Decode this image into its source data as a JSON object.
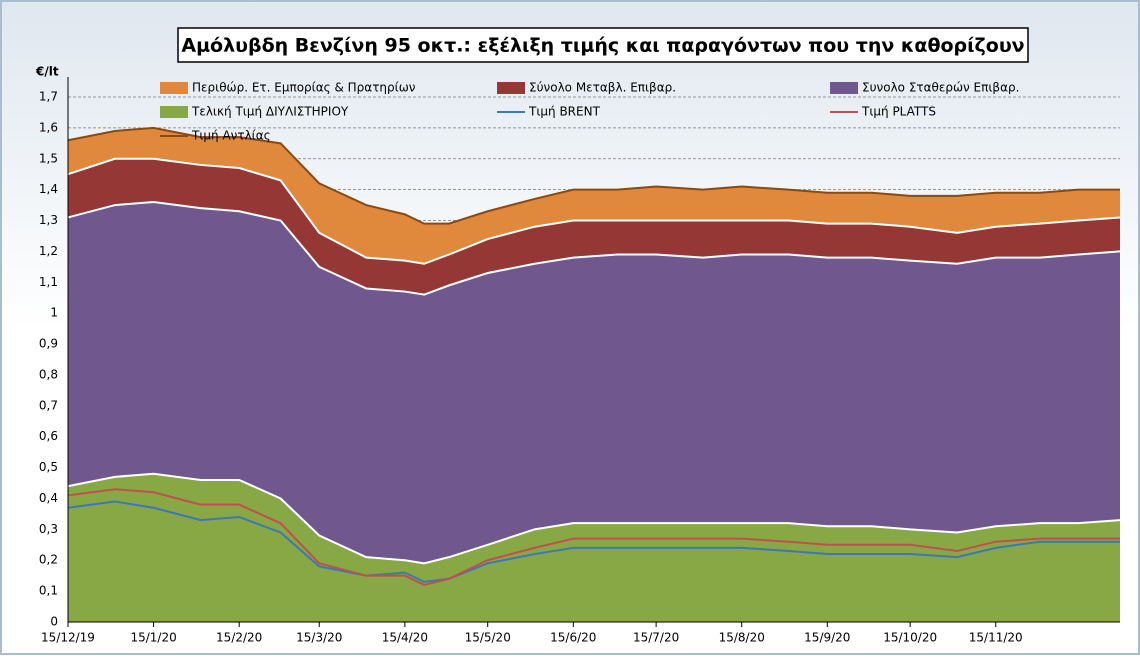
{
  "chart_data": {
    "type": "stacked-area",
    "title": "Αμόλυβδη Βενζίνη 95 οκτ.: εξέλιξη τιμής και παραγόντων που την καθορίζουν",
    "y_label": "€/lt",
    "x": [
      "15/12/19",
      "1/1/20",
      "15/1/20",
      "1/2/20",
      "15/2/20",
      "1/3/20",
      "15/3/20",
      "1/4/20",
      "15/4/20",
      "22/4/20",
      "1/5/20",
      "15/5/20",
      "1/6/20",
      "15/6/20",
      "1/7/20",
      "15/7/20",
      "1/8/20",
      "15/8/20",
      "1/9/20",
      "15/9/20",
      "1/10/20",
      "15/10/20",
      "1/11/20",
      "15/11/20",
      "1/12/20",
      "15/12/20",
      "30/12/20"
    ],
    "xlim": [
      "15/12/19",
      "30/12/20"
    ],
    "xticks": [
      "15/12/19",
      "15/1/20",
      "15/2/20",
      "15/3/20",
      "15/4/20",
      "15/5/20",
      "15/6/20",
      "15/7/20",
      "15/8/20",
      "15/9/20",
      "15/10/20",
      "15/11/20"
    ],
    "ylim": [
      0,
      1.7
    ],
    "yticks": [
      0,
      {
        "value": 0.1,
        "label": "0,1"
      },
      {
        "value": 0.2,
        "label": "0,2"
      },
      {
        "value": 0.3,
        "label": "0,3"
      },
      {
        "value": 0.4,
        "label": "0,4"
      },
      {
        "value": 0.5,
        "label": "0,5"
      },
      {
        "value": 0.6,
        "label": "0,6"
      },
      {
        "value": 0.7,
        "label": "0,7"
      },
      {
        "value": 0.8,
        "label": "0,8"
      },
      {
        "value": 0.9,
        "label": "0,9"
      },
      1,
      {
        "value": 1.1,
        "label": "1,1"
      },
      {
        "value": 1.2,
        "label": "1,2"
      },
      {
        "value": 1.3,
        "label": "1,3"
      },
      {
        "value": 1.4,
        "label": "1,4"
      },
      {
        "value": 1.5,
        "label": "1,5"
      },
      {
        "value": 1.6,
        "label": "1,6"
      },
      {
        "value": 1.7,
        "label": "1,7"
      }
    ],
    "grid": true,
    "series": [
      {
        "name": "Περιθώρ. Ετ. Εμπορίας & Πρατηρίων",
        "color": "#e0893d",
        "kind": "area",
        "stack": 3,
        "legend": [
          0,
          0
        ],
        "values": [
          0.11,
          0.09,
          0.1,
          0.09,
          0.1,
          0.12,
          0.16,
          0.17,
          0.15,
          0.13,
          0.1,
          0.09,
          0.09,
          0.1,
          0.1,
          0.11,
          0.1,
          0.11,
          0.1,
          0.1,
          0.1,
          0.1,
          0.12,
          0.11,
          0.1,
          0.1,
          0.09
        ]
      },
      {
        "name": "Σύνολο Μεταβλ. Επιβαρ.",
        "color": "#953735",
        "kind": "area",
        "stack": 2,
        "legend": [
          1,
          0
        ],
        "values": [
          0.14,
          0.15,
          0.14,
          0.14,
          0.14,
          0.13,
          0.11,
          0.1,
          0.1,
          0.1,
          0.1,
          0.11,
          0.12,
          0.12,
          0.11,
          0.11,
          0.12,
          0.11,
          0.11,
          0.11,
          0.11,
          0.11,
          0.1,
          0.1,
          0.11,
          0.11,
          0.11
        ]
      },
      {
        "name": "Συνολο Σταθερών Επιβαρ.",
        "color": "#70588f",
        "kind": "area",
        "stack": 1,
        "legend": [
          2,
          0
        ],
        "values": [
          0.87,
          0.88,
          0.88,
          0.88,
          0.87,
          0.9,
          0.87,
          0.87,
          0.87,
          0.87,
          0.88,
          0.88,
          0.86,
          0.86,
          0.87,
          0.87,
          0.86,
          0.87,
          0.87,
          0.87,
          0.87,
          0.87,
          0.87,
          0.87,
          0.86,
          0.87,
          0.87
        ]
      },
      {
        "name": "Τελική Τιμή ΔΙΥΛΙΣΤΗΡΙΟΥ",
        "color": "#88a845",
        "kind": "area",
        "stack": 0,
        "legend": [
          0,
          1
        ],
        "values": [
          0.44,
          0.47,
          0.48,
          0.46,
          0.46,
          0.4,
          0.28,
          0.21,
          0.2,
          0.19,
          0.21,
          0.25,
          0.3,
          0.32,
          0.32,
          0.32,
          0.32,
          0.32,
          0.32,
          0.31,
          0.31,
          0.3,
          0.29,
          0.31,
          0.32,
          0.32,
          0.33
        ]
      },
      {
        "name": "Τιμή BRENT",
        "color": "#3c77b9",
        "kind": "line",
        "legend": [
          1,
          1
        ],
        "values": [
          0.37,
          0.39,
          0.37,
          0.33,
          0.34,
          0.29,
          0.18,
          0.15,
          0.16,
          0.13,
          0.14,
          0.19,
          0.22,
          0.24,
          0.24,
          0.24,
          0.24,
          0.24,
          0.23,
          0.22,
          0.22,
          0.22,
          0.21,
          0.24,
          0.26,
          0.26,
          0.26
        ]
      },
      {
        "name": "Τιμή PLATTS",
        "color": "#c0504d",
        "kind": "line",
        "legend": [
          2,
          1
        ],
        "values": [
          0.41,
          0.43,
          0.42,
          0.38,
          0.38,
          0.32,
          0.19,
          0.15,
          0.15,
          0.12,
          0.14,
          0.2,
          0.24,
          0.27,
          0.27,
          0.27,
          0.27,
          0.27,
          0.26,
          0.25,
          0.25,
          0.25,
          0.23,
          0.26,
          0.27,
          0.27,
          0.27
        ]
      },
      {
        "name": "Τιμή Αντλίας",
        "color": "#8a4a12",
        "kind": "line",
        "legend": [
          0,
          2
        ],
        "values": [
          1.56,
          1.59,
          1.6,
          1.57,
          1.57,
          1.55,
          1.42,
          1.35,
          1.32,
          1.29,
          1.29,
          1.33,
          1.37,
          1.4,
          1.4,
          1.41,
          1.4,
          1.41,
          1.4,
          1.39,
          1.39,
          1.38,
          1.38,
          1.39,
          1.39,
          1.4,
          1.4
        ]
      }
    ]
  }
}
